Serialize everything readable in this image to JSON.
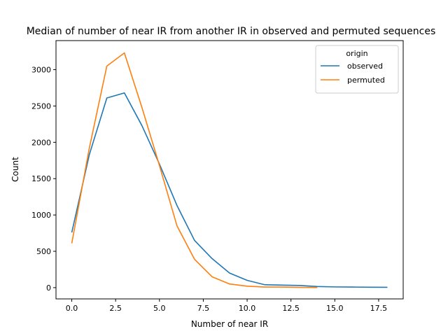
{
  "chart_data": {
    "type": "line",
    "title": "Median of number of near IR from another IR in observed and permuted sequences",
    "xlabel": "Number of near IR",
    "ylabel": "Count",
    "xlim": [
      -0.9,
      18.9
    ],
    "ylim": [
      -155,
      3400
    ],
    "xticks": [
      0.0,
      2.5,
      5.0,
      7.5,
      10.0,
      12.5,
      15.0,
      17.5
    ],
    "xtick_labels": [
      "0.0",
      "2.5",
      "5.0",
      "7.5",
      "10.0",
      "12.5",
      "15.0",
      "17.5"
    ],
    "yticks": [
      0,
      500,
      1000,
      1500,
      2000,
      2500,
      3000
    ],
    "ytick_labels": [
      "0",
      "500",
      "1000",
      "1500",
      "2000",
      "2500",
      "3000"
    ],
    "grid": false,
    "legend": {
      "title": "origin",
      "placement": "top-right"
    },
    "series": [
      {
        "name": "observed",
        "color": "#1f77b4",
        "x": [
          0,
          1,
          2,
          3,
          4,
          5,
          6,
          7,
          8,
          9,
          10,
          11,
          12,
          13,
          14,
          15,
          16,
          17,
          18
        ],
        "y": [
          760,
          1830,
          2610,
          2680,
          2230,
          1700,
          1130,
          650,
          400,
          200,
          100,
          40,
          35,
          30,
          15,
          10,
          8,
          6,
          5
        ]
      },
      {
        "name": "permuted",
        "color": "#ff7f0e",
        "x": [
          0,
          1,
          2,
          3,
          4,
          5,
          6,
          7,
          8,
          9,
          10,
          11,
          12,
          13,
          14
        ],
        "y": [
          610,
          1920,
          3050,
          3230,
          2480,
          1680,
          850,
          390,
          150,
          50,
          20,
          8,
          8,
          3,
          2
        ]
      }
    ]
  }
}
